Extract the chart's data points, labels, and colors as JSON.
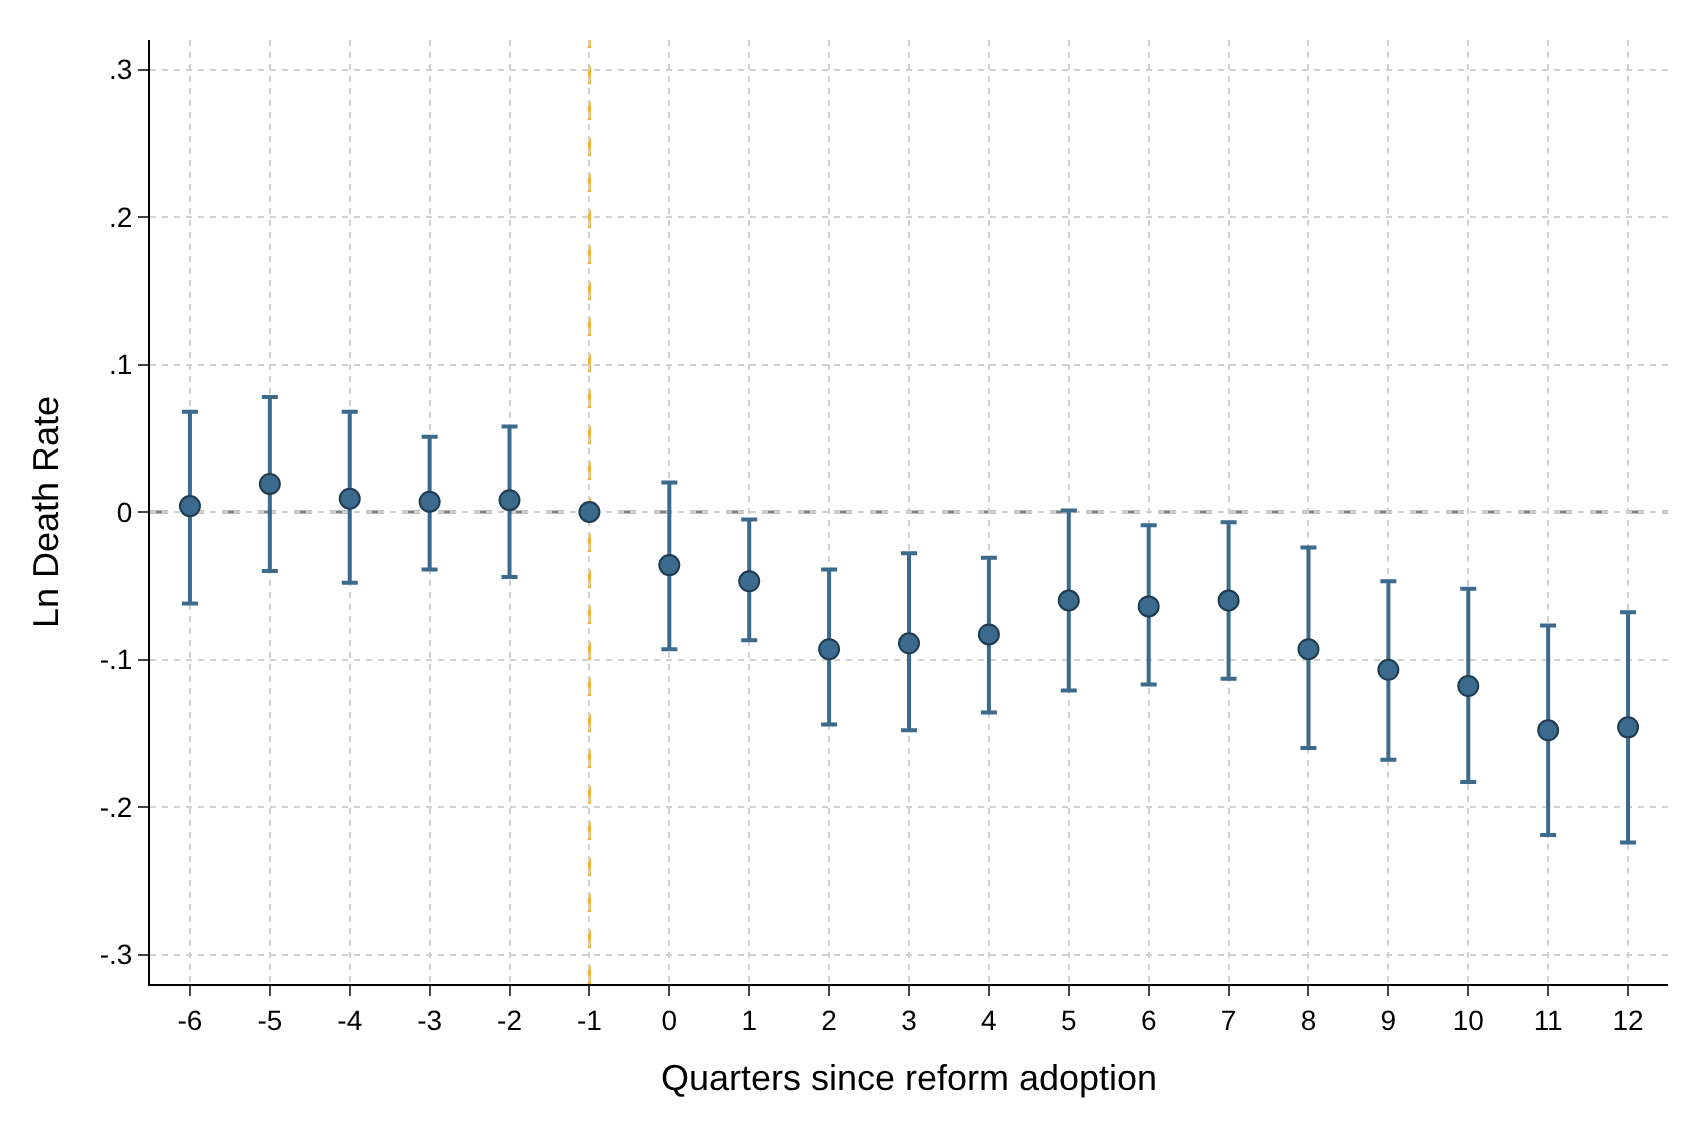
{
  "chart_data": {
    "type": "scatter",
    "xlabel": "Quarters since reform adoption",
    "ylabel": "Ln Death Rate",
    "x": [
      -6,
      -5,
      -4,
      -3,
      -2,
      -1,
      0,
      1,
      2,
      3,
      4,
      5,
      6,
      7,
      8,
      9,
      10,
      11,
      12
    ],
    "series": [
      {
        "color": "#3b6a8c",
        "values": [
          0.004,
          0.019,
          0.009,
          0.007,
          0.008,
          0.0,
          -0.036,
          -0.047,
          -0.093,
          -0.089,
          -0.083,
          -0.06,
          -0.064,
          -0.06,
          -0.093,
          -0.107,
          -0.118,
          -0.148,
          -0.146
        ],
        "errors": [
          [
            -0.062,
            0.068
          ],
          [
            -0.04,
            0.078
          ],
          [
            -0.048,
            0.068
          ],
          [
            -0.039,
            0.051
          ],
          [
            -0.044,
            0.058
          ],
          null,
          [
            -0.093,
            0.02
          ],
          [
            -0.087,
            -0.005
          ],
          [
            -0.144,
            -0.039
          ],
          [
            -0.148,
            -0.028
          ],
          [
            -0.136,
            -0.031
          ],
          [
            -0.121,
            0.001
          ],
          [
            -0.117,
            -0.009
          ],
          [
            -0.113,
            -0.007
          ],
          [
            -0.16,
            -0.024
          ],
          [
            -0.168,
            -0.047
          ],
          [
            -0.183,
            -0.052
          ],
          [
            -0.219,
            -0.077
          ],
          [
            -0.224,
            -0.068
          ]
        ]
      }
    ],
    "xlim": [
      -6.5,
      12.5
    ],
    "xticks": [
      -6,
      -5,
      -4,
      -3,
      -2,
      -1,
      0,
      1,
      2,
      3,
      4,
      5,
      6,
      7,
      8,
      9,
      10,
      11,
      12
    ],
    "ylim": [
      -0.32,
      0.32
    ],
    "yticks": [
      {
        "value": -0.3,
        "label": "-.3"
      },
      {
        "value": -0.2,
        "label": "-.2"
      },
      {
        "value": -0.1,
        "label": "-.1"
      },
      0,
      {
        "value": 0.1,
        "label": ".1"
      },
      {
        "value": 0.2,
        "label": ".2"
      },
      {
        "value": 0.3,
        "label": ".3"
      }
    ],
    "ref_lines": [
      {
        "axis": "y",
        "value": 0,
        "color": "#808080",
        "line_style": "dashed"
      },
      {
        "axis": "x",
        "value": -1,
        "color": "#f2b134",
        "line_style": "dashed"
      }
    ],
    "grid": true,
    "marker": "circle"
  }
}
